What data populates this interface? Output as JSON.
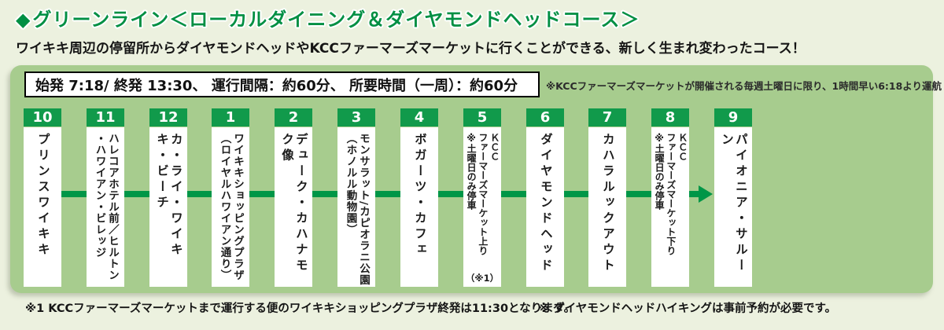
{
  "header": {
    "title_icon": "◆",
    "title": "グリーンライン＜ローカルダイニング＆ダイヤモンドヘッドコース＞",
    "subtitle": "ワイキキ周辺の停留所からダイヤモンドヘッドやKCCファーマーズマーケットに行くことができる、新しく生まれ変わったコース！"
  },
  "schedule": {
    "times": "始発 7:18/ 終発 13:30、 運行間隔：約60分、 所要時間（一周）：約60分",
    "saturday_note": "※KCCファーマーズマーケットが開催される毎週土曜日に限り、1時間早い6:18より運航"
  },
  "route": {
    "stops": [
      {
        "number": "10",
        "lines": [
          "プリンスワイキキ"
        ]
      },
      {
        "number": "11",
        "lines": [
          "ハレコアホテル前／ヒルトン",
          "・ハワイアン・ビレッジ"
        ]
      },
      {
        "number": "12",
        "lines": [
          "カ・ライ・ワイキキ・ビーチ"
        ]
      },
      {
        "number": "1",
        "lines": [
          "ワイキキショッピングプラザ",
          "（ロイヤルハワイアン通り）"
        ]
      },
      {
        "number": "2",
        "lines": [
          "デューク・カハナモク像"
        ]
      },
      {
        "number": "3",
        "lines": [
          "モンサラット/カピオラニ公園",
          "（ホノルル動物園）"
        ]
      },
      {
        "number": "4",
        "lines": [
          "ボガーツ・カフェ"
        ]
      },
      {
        "number": "5",
        "lines": [
          "ＫＣＣ",
          "ファーマーズマーケット上り",
          "※土曜日のみ停車"
        ],
        "footnote": "（※1）"
      },
      {
        "number": "6",
        "lines": [
          "ダイヤモンドヘッド"
        ]
      },
      {
        "number": "7",
        "lines": [
          "カハラルックアウト"
        ]
      },
      {
        "number": "8",
        "lines": [
          "ＫＣＣ",
          "ファーマーズマーケット下り",
          "※土曜日のみ停車"
        ]
      },
      {
        "number": "9",
        "lines": [
          "パイオニア・サルーン"
        ]
      }
    ]
  },
  "footnotes": {
    "note1": "※1 KCCファーマーズマーケットまで運行する便のワイキキショッピングプラザ終発は11:30となります。",
    "note2": "※ ダイヤモンドヘッドハイキングは事前予約が必要です。"
  },
  "colors": {
    "page_background": "#ecf1df",
    "panel_green": "#a7cc8e",
    "accent_green": "#009647",
    "badge_green": "#119a4b",
    "title_green": "#008f43"
  }
}
